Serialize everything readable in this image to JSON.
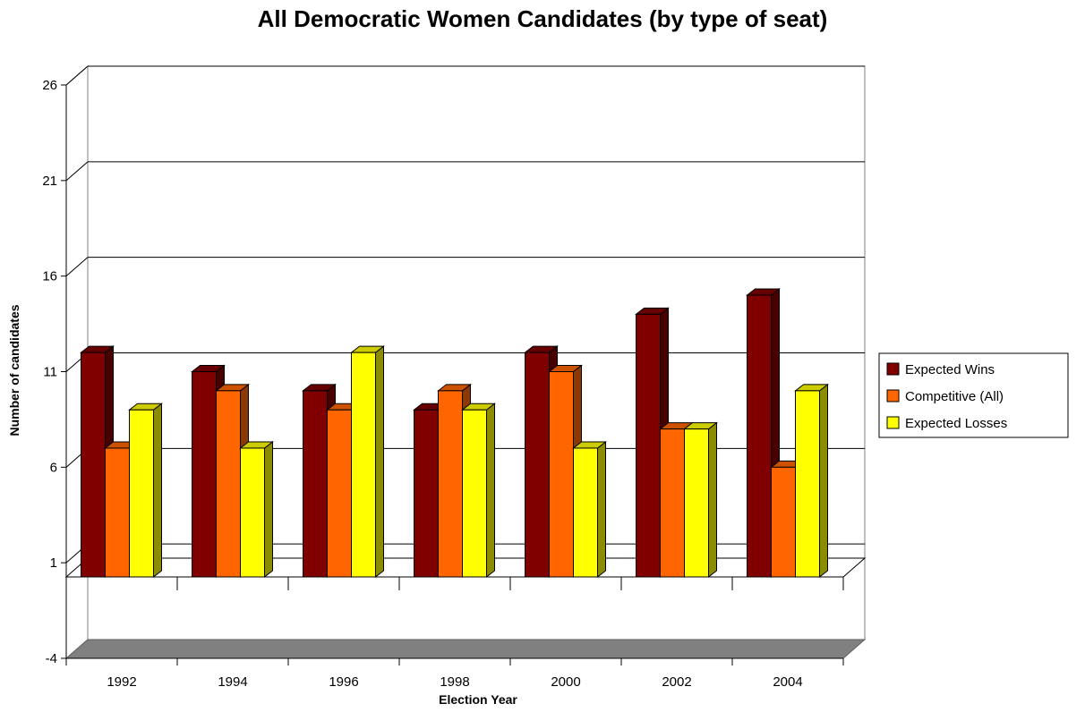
{
  "chart_data": {
    "type": "bar",
    "title": "All Democratic Women Candidates (by type of seat)",
    "xlabel": "Election Year",
    "ylabel": "Number of candidates",
    "categories": [
      "1992",
      "1994",
      "1996",
      "1998",
      "2000",
      "2002",
      "2004"
    ],
    "yticks": [
      -4,
      1,
      6,
      11,
      16,
      21,
      26
    ],
    "ylim": [
      -4,
      26
    ],
    "grid": true,
    "legend_position": "right",
    "series": [
      {
        "name": "Expected Wins",
        "color": "#800000",
        "values": [
          12,
          11,
          10,
          9,
          12,
          14,
          15
        ]
      },
      {
        "name": "Competitive (All)",
        "color": "#ff6600",
        "values": [
          7,
          10,
          9,
          10,
          11,
          8,
          6
        ]
      },
      {
        "name": "Expected Losses",
        "color": "#ffff00",
        "values": [
          9,
          7,
          12,
          9,
          7,
          8,
          10
        ]
      }
    ]
  }
}
